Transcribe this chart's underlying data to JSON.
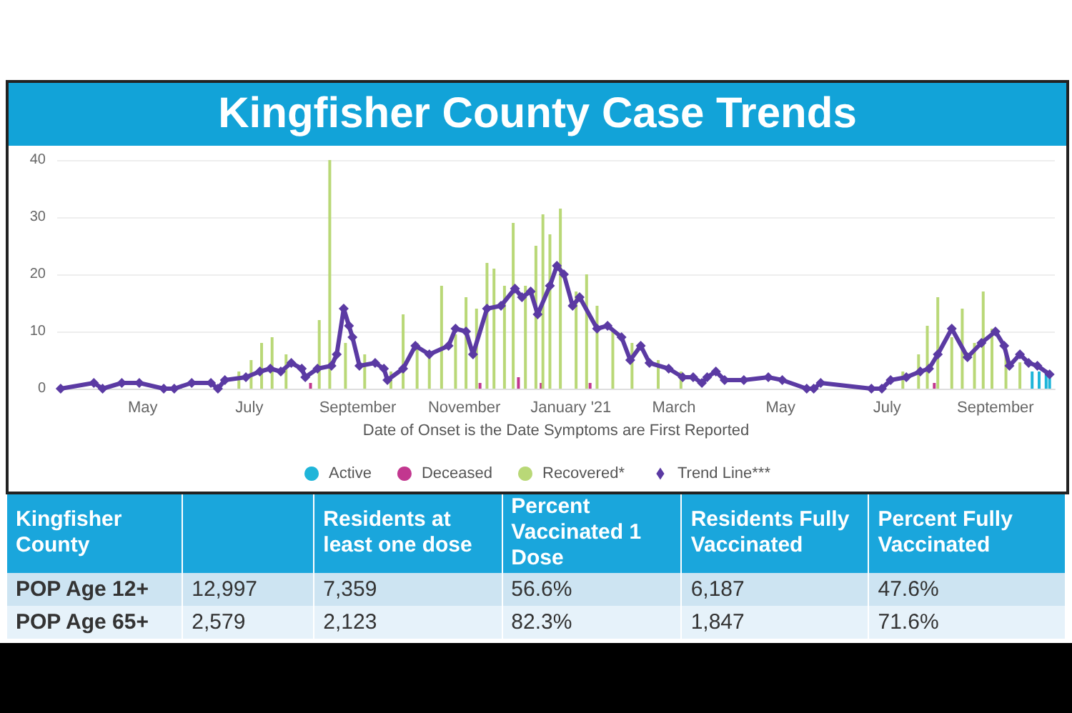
{
  "chart_data": [
    {
      "type": "bar",
      "title": "Kingfisher County Case Trends",
      "xlabel": "Date of Onset is the Date Symptoms are First Reported",
      "xlim": [
        "2020-03-13",
        "2021-10-05"
      ],
      "xticks": [
        {
          "value": "2020-05-01",
          "label": "May"
        },
        {
          "value": "2020-07-01",
          "label": "July"
        },
        {
          "value": "2020-09-01",
          "label": "September"
        },
        {
          "value": "2020-11-01",
          "label": "November"
        },
        {
          "value": "2021-01-01",
          "label": "January '21"
        },
        {
          "value": "2021-03-01",
          "label": "March"
        },
        {
          "value": "2021-05-01",
          "label": "May"
        },
        {
          "value": "2021-07-01",
          "label": "July"
        },
        {
          "value": "2021-09-01",
          "label": "September"
        }
      ],
      "ylim": [
        0,
        40
      ],
      "yticks": [
        0,
        10,
        20,
        30,
        40
      ],
      "grid": "y",
      "legend": "bottom",
      "series": [
        {
          "name": "Active",
          "color": "#1fb5d9",
          "x": [
            "2021-09-22",
            "2021-09-26",
            "2021-09-30",
            "2021-10-02"
          ],
          "values": [
            3,
            3,
            3,
            2
          ]
        },
        {
          "name": "Deceased",
          "color": "#c2378f",
          "x": [
            "2020-08-05",
            "2020-11-10",
            "2020-12-02",
            "2020-12-15",
            "2021-01-12",
            "2021-07-28"
          ],
          "values": [
            1,
            1,
            2,
            1,
            1,
            1
          ]
        },
        {
          "name": "Recovered*",
          "color": "#b9d877",
          "x": [
            "2020-06-25",
            "2020-07-02",
            "2020-07-08",
            "2020-07-14",
            "2020-07-22",
            "2020-08-10",
            "2020-08-16",
            "2020-08-25",
            "2020-09-05",
            "2020-09-20",
            "2020-09-27",
            "2020-10-05",
            "2020-10-12",
            "2020-10-19",
            "2020-10-27",
            "2020-11-02",
            "2020-11-08",
            "2020-11-14",
            "2020-11-18",
            "2020-11-24",
            "2020-11-29",
            "2020-12-06",
            "2020-12-12",
            "2020-12-16",
            "2020-12-20",
            "2020-12-26",
            "2021-01-04",
            "2021-01-10",
            "2021-01-16",
            "2021-01-25",
            "2021-02-05",
            "2021-02-20",
            "2021-03-05",
            "2021-07-10",
            "2021-07-19",
            "2021-07-24",
            "2021-07-30",
            "2021-08-07",
            "2021-08-13",
            "2021-08-20",
            "2021-08-25",
            "2021-08-30",
            "2021-09-07",
            "2021-09-15"
          ],
          "values": [
            3,
            5,
            8,
            9,
            6,
            12,
            40,
            8,
            6,
            3,
            13,
            8,
            6,
            18,
            9.5,
            16,
            14,
            22,
            21,
            18,
            29,
            18,
            25,
            30.5,
            27,
            31.5,
            17,
            20,
            14.5,
            10,
            8,
            5,
            3,
            3,
            6,
            11,
            16,
            9,
            14,
            8,
            17,
            10.5,
            6,
            4.6
          ]
        },
        {
          "name": "Trend Line***",
          "type": "line",
          "color": "#5b3aa3",
          "marker": "diamond",
          "x": [
            "2020-03-15",
            "2020-04-03",
            "2020-04-08",
            "2020-04-19",
            "2020-04-29",
            "2020-05-13",
            "2020-05-19",
            "2020-05-29",
            "2020-06-09",
            "2020-06-13",
            "2020-06-17",
            "2020-06-29",
            "2020-07-07",
            "2020-07-13",
            "2020-07-19",
            "2020-07-25",
            "2020-07-31",
            "2020-08-02",
            "2020-08-09",
            "2020-08-17",
            "2020-08-20",
            "2020-08-24",
            "2020-08-27",
            "2020-08-29",
            "2020-09-02",
            "2020-09-11",
            "2020-09-16",
            "2020-09-18",
            "2020-09-27",
            "2020-10-04",
            "2020-10-12",
            "2020-10-23",
            "2020-10-27",
            "2020-11-02",
            "2020-11-06",
            "2020-11-14",
            "2020-11-22",
            "2020-11-30",
            "2020-12-04",
            "2020-12-09",
            "2020-12-13",
            "2020-12-20",
            "2020-12-24",
            "2020-12-28",
            "2021-01-02",
            "2021-01-06",
            "2021-01-16",
            "2021-01-22",
            "2021-01-30",
            "2021-02-04",
            "2021-02-10",
            "2021-02-15",
            "2021-02-26",
            "2021-03-06",
            "2021-03-12",
            "2021-03-17",
            "2021-03-20",
            "2021-03-25",
            "2021-03-30",
            "2021-04-10",
            "2021-04-24",
            "2021-05-02",
            "2021-05-16",
            "2021-05-20",
            "2021-05-24",
            "2021-06-22",
            "2021-06-28",
            "2021-07-03",
            "2021-07-12",
            "2021-07-20",
            "2021-07-25",
            "2021-07-30",
            "2021-08-07",
            "2021-08-16",
            "2021-08-24",
            "2021-09-01",
            "2021-09-06",
            "2021-09-09",
            "2021-09-15",
            "2021-09-20",
            "2021-09-25",
            "2021-10-02"
          ],
          "values": [
            0,
            1,
            0,
            1,
            1,
            0,
            0,
            1,
            1,
            0,
            1.5,
            2,
            3,
            3.5,
            3,
            4.5,
            3.5,
            2,
            3.5,
            4,
            6,
            14,
            11,
            9,
            4,
            4.5,
            3.5,
            1.5,
            3.5,
            7.5,
            6,
            7.5,
            10.5,
            10,
            6,
            14,
            14.5,
            17.5,
            16,
            17,
            13,
            18,
            21.5,
            20,
            14.5,
            16,
            10.5,
            11,
            9,
            5,
            7.5,
            4.5,
            3.5,
            2,
            2,
            1,
            2,
            3,
            1.5,
            1.5,
            2,
            1.5,
            0,
            0,
            1,
            0,
            0,
            1.5,
            2,
            3,
            3.5,
            6,
            10.5,
            5.5,
            8,
            10,
            7.5,
            4,
            6,
            4.5,
            4,
            2.5
          ]
        }
      ]
    },
    {
      "type": "other",
      "ylabel": "Kingfisher County",
      "categories": [
        null,
        "Residents at least one dose",
        "Percent Vaccinated 1 Dose",
        "Residents Fully Vaccinated",
        "Percent Fully Vaccinated"
      ],
      "y_categories": [
        "POP Age 12+",
        "POP Age 65+"
      ],
      "cell_labels": [
        [
          "12,997",
          "7,359",
          "56.6%",
          "6,187",
          "47.6%"
        ],
        [
          "2,579",
          "2,123",
          "82.3%",
          "1,847",
          "71.6%"
        ]
      ]
    }
  ]
}
